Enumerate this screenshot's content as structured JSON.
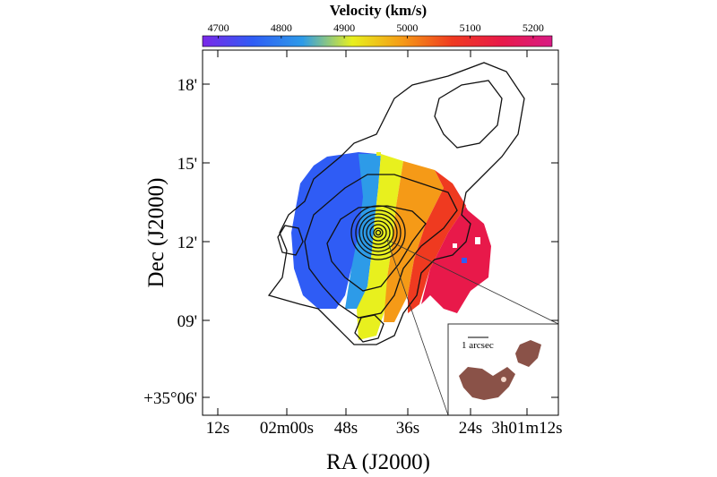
{
  "chart_data": {
    "type": "heatmap",
    "title": "",
    "colorbar": {
      "label": "Velocity (km/s)",
      "ticks": [
        "4700",
        "4800",
        "4900",
        "5000",
        "5100",
        "5200"
      ],
      "tick_values": [
        4700,
        4800,
        4900,
        5000,
        5100,
        5200
      ],
      "range": [
        4675,
        5230
      ],
      "colormap": [
        "#7a28e8",
        "#2f5cf5",
        "#2d9be8",
        "#e8f01e",
        "#f59a17",
        "#ef3a20",
        "#e8194a",
        "#d81b84"
      ]
    },
    "xlabel": "RA (J2000)",
    "ylabel": "Dec (J2000)",
    "x_ticks": [
      "12s",
      "02m00s",
      "48s",
      "36s",
      "24s",
      "3h01m12s"
    ],
    "y_ticks": [
      "+35°06'",
      "09'",
      "12'",
      "15'",
      "18'"
    ],
    "inset": {
      "scale_label": "1 arcsec"
    }
  }
}
